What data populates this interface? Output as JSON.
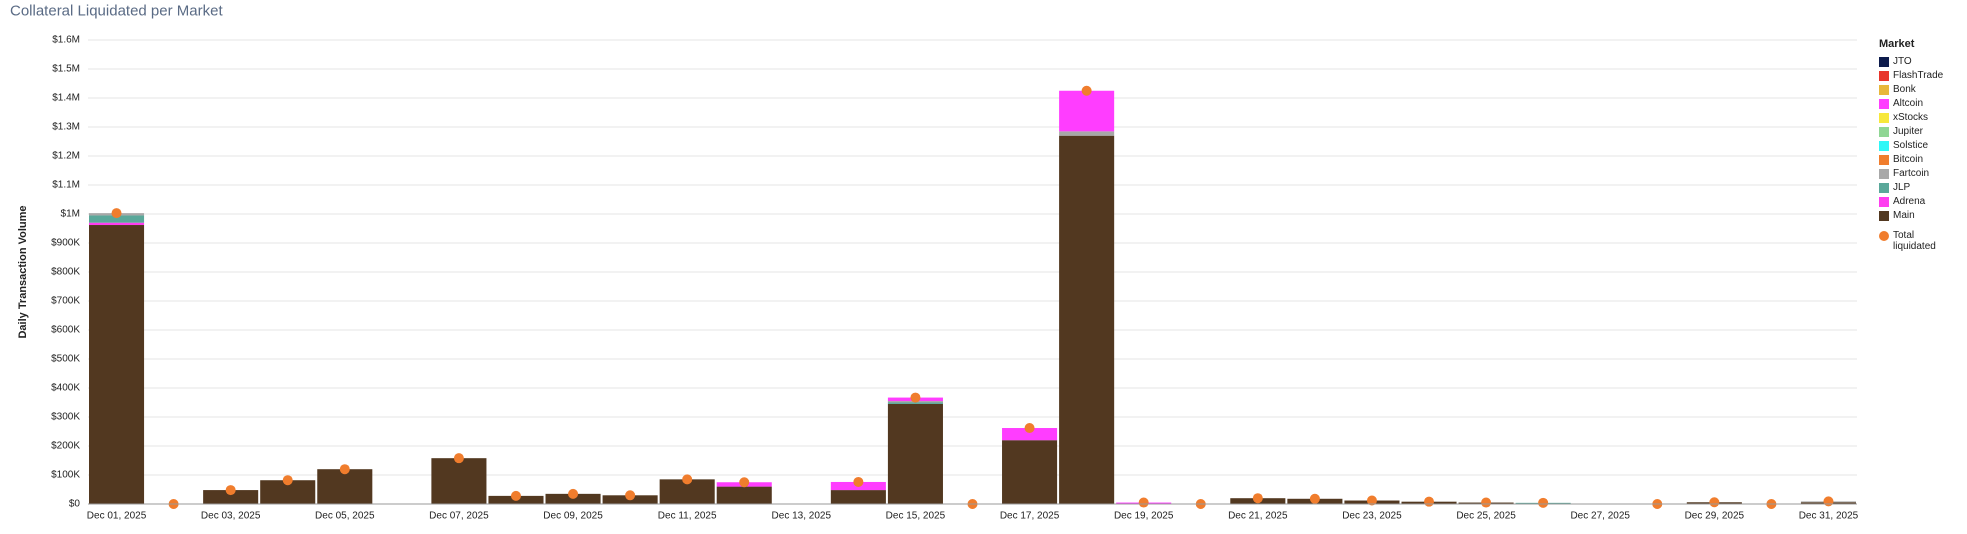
{
  "chart_data": {
    "type": "bar",
    "stacked": true,
    "title": "Collateral Liquidated per Market",
    "y_label": "Daily Transaction Volume",
    "legend_title": "Market",
    "legend_position": "right",
    "grid": true,
    "categories": [
      "Dec 01, 2025",
      null,
      "Dec 03, 2025",
      null,
      "Dec 05, 2025",
      null,
      "Dec 07, 2025",
      null,
      "Dec 09, 2025",
      null,
      "Dec 11, 2025",
      null,
      "Dec 13, 2025",
      null,
      "Dec 15, 2025",
      null,
      "Dec 17, 2025",
      null,
      "Dec 19, 2025",
      null,
      "Dec 21, 2025",
      null,
      "Dec 23, 2025",
      null,
      "Dec 25, 2025",
      null,
      "Dec 27, 2025",
      null,
      "Dec 29, 2025",
      null,
      "Dec 31, 2025"
    ],
    "ylim": [
      0,
      1600000
    ],
    "yticks": [
      {
        "value": 0,
        "label": "$0"
      },
      {
        "value": 100000,
        "label": "$100K"
      },
      {
        "value": 200000,
        "label": "$200K"
      },
      {
        "value": 300000,
        "label": "$300K"
      },
      {
        "value": 400000,
        "label": "$400K"
      },
      {
        "value": 500000,
        "label": "$500K"
      },
      {
        "value": 600000,
        "label": "$600K"
      },
      {
        "value": 700000,
        "label": "$700K"
      },
      {
        "value": 800000,
        "label": "$800K"
      },
      {
        "value": 900000,
        "label": "$900K"
      },
      {
        "value": 1000000,
        "label": "$1M"
      },
      {
        "value": 1100000,
        "label": "$1.1M"
      },
      {
        "value": 1200000,
        "label": "$1.2M"
      },
      {
        "value": 1300000,
        "label": "$1.3M"
      },
      {
        "value": 1400000,
        "label": "$1.4M"
      },
      {
        "value": 1500000,
        "label": "$1.5M"
      },
      {
        "value": 1600000,
        "label": "$1.6M"
      }
    ],
    "series": [
      {
        "name": "JTO",
        "color": "#0d1b4c",
        "values": [
          0,
          0,
          0,
          0,
          0,
          0,
          0,
          0,
          0,
          0,
          0,
          0,
          0,
          0,
          0,
          0,
          0,
          0,
          0,
          0,
          0,
          0,
          0,
          0,
          0,
          0,
          0,
          0,
          0,
          0,
          0
        ]
      },
      {
        "name": "FlashTrade",
        "color": "#e8352b",
        "values": [
          0,
          0,
          0,
          0,
          0,
          0,
          0,
          0,
          0,
          0,
          0,
          0,
          0,
          0,
          0,
          0,
          0,
          0,
          0,
          0,
          0,
          0,
          0,
          0,
          0,
          0,
          0,
          0,
          0,
          0,
          0
        ]
      },
      {
        "name": "Bonk",
        "color": "#e8b83a",
        "values": [
          0,
          0,
          0,
          0,
          0,
          0,
          0,
          0,
          0,
          0,
          0,
          0,
          0,
          0,
          0,
          0,
          0,
          0,
          0,
          0,
          0,
          0,
          0,
          0,
          0,
          0,
          0,
          0,
          0,
          0,
          0
        ]
      },
      {
        "name": "Altcoin",
        "color": "#ff3dff",
        "values": [
          0,
          0,
          0,
          0,
          0,
          0,
          0,
          0,
          0,
          0,
          0,
          15000,
          0,
          28000,
          12000,
          0,
          42000,
          140000,
          5000,
          0,
          0,
          0,
          0,
          0,
          0,
          0,
          0,
          0,
          0,
          0,
          0
        ]
      },
      {
        "name": "xStocks",
        "color": "#f7e83b",
        "values": [
          0,
          0,
          0,
          0,
          0,
          0,
          0,
          0,
          0,
          0,
          0,
          0,
          0,
          0,
          0,
          0,
          0,
          0,
          0,
          0,
          0,
          0,
          0,
          0,
          0,
          0,
          0,
          0,
          0,
          0,
          0
        ]
      },
      {
        "name": "Jupiter",
        "color": "#8fd694",
        "values": [
          0,
          0,
          0,
          0,
          0,
          0,
          0,
          0,
          0,
          0,
          0,
          0,
          0,
          0,
          0,
          0,
          0,
          0,
          0,
          0,
          0,
          0,
          0,
          0,
          0,
          0,
          0,
          0,
          0,
          0,
          0
        ]
      },
      {
        "name": "Solstice",
        "color": "#2ef7f7",
        "values": [
          0,
          0,
          0,
          0,
          0,
          0,
          0,
          0,
          0,
          0,
          0,
          0,
          0,
          0,
          0,
          0,
          0,
          0,
          0,
          0,
          0,
          0,
          0,
          0,
          0,
          0,
          0,
          0,
          0,
          0,
          0
        ]
      },
      {
        "name": "Bitcoin",
        "color": "#f07d2d",
        "values": [
          0,
          0,
          0,
          0,
          0,
          0,
          0,
          0,
          0,
          0,
          0,
          0,
          0,
          0,
          0,
          0,
          0,
          0,
          0,
          0,
          0,
          0,
          0,
          0,
          0,
          0,
          0,
          0,
          0,
          0,
          0
        ]
      },
      {
        "name": "Fartcoin",
        "color": "#a8a8a8",
        "values": [
          8000,
          0,
          0,
          0,
          0,
          0,
          0,
          0,
          0,
          0,
          0,
          0,
          0,
          0,
          5000,
          0,
          0,
          15000,
          0,
          0,
          0,
          0,
          0,
          0,
          0,
          0,
          0,
          0,
          0,
          0,
          3000
        ]
      },
      {
        "name": "JLP",
        "color": "#5aa89a",
        "values": [
          25000,
          0,
          0,
          0,
          0,
          0,
          0,
          0,
          0,
          0,
          0,
          0,
          0,
          0,
          5000,
          0,
          0,
          0,
          0,
          0,
          0,
          0,
          0,
          0,
          0,
          4000,
          0,
          0,
          0,
          0,
          0
        ]
      },
      {
        "name": "Adrena",
        "color": "#ff3df0",
        "values": [
          8000,
          0,
          0,
          0,
          0,
          0,
          0,
          0,
          0,
          0,
          0,
          0,
          0,
          0,
          0,
          0,
          0,
          0,
          0,
          0,
          0,
          0,
          0,
          0,
          0,
          0,
          0,
          0,
          0,
          0,
          0
        ]
      },
      {
        "name": "Main",
        "color": "#523820",
        "values": [
          962000,
          0,
          48000,
          82000,
          120000,
          0,
          158000,
          28000,
          35000,
          30000,
          85000,
          60000,
          0,
          48000,
          345000,
          0,
          220000,
          1270000,
          0,
          0,
          20000,
          18000,
          12000,
          8000,
          5000,
          0,
          0,
          0,
          6000,
          0,
          6000
        ]
      }
    ],
    "totals": {
      "name": "Total liquidated",
      "color": "#f07d2d",
      "values": [
        1003000,
        0,
        48000,
        82000,
        120000,
        null,
        158000,
        28000,
        35000,
        30000,
        85000,
        75000,
        null,
        76000,
        367000,
        0,
        262000,
        1425000,
        5000,
        0,
        20000,
        18000,
        12000,
        8000,
        5000,
        4000,
        null,
        0,
        6000,
        0,
        9000
      ]
    }
  }
}
